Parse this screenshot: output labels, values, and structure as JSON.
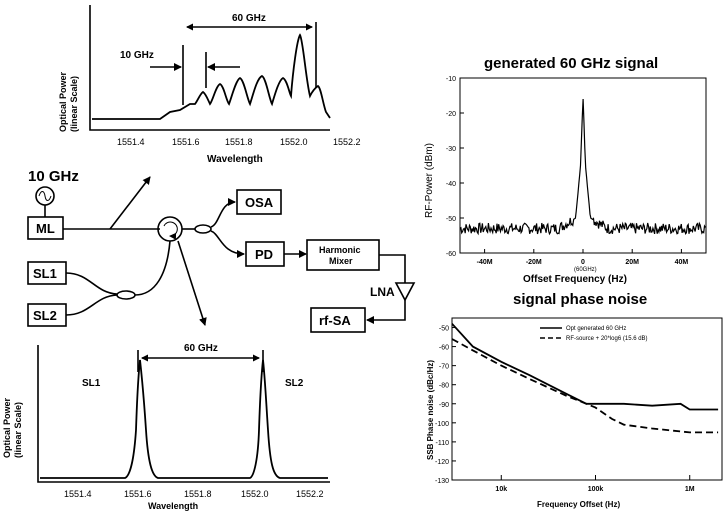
{
  "setup": {
    "source_label": "10 GHz",
    "blocks": {
      "ml": "ML",
      "sl1": "SL1",
      "sl2": "SL2",
      "osa": "OSA",
      "pd": "PD",
      "mixer_line1": "Harmonic",
      "mixer_line2": "Mixer",
      "lna": "LNA",
      "rfsa": "rf-SA"
    }
  },
  "spectra": {
    "top": {
      "ylabel_line1": "Optical Power",
      "ylabel_line2": "(linear Scale)",
      "xlabel": "Wavelength",
      "xticks": [
        "1551.4",
        "1551.6",
        "1551.8",
        "1552.0",
        "1552.2"
      ],
      "ann_spacing": "10 GHz",
      "ann_span": "60 GHz"
    },
    "bottom": {
      "ylabel_line1": "Optical Power",
      "ylabel_line2": "(linear Scale)",
      "xlabel": "Wavelength",
      "xticks": [
        "1551.4",
        "1551.6",
        "1551.8",
        "1552.0",
        "1552.2"
      ],
      "ann_span": "60 GHz",
      "peak_left": "SL1",
      "peak_right": "SL2"
    }
  },
  "chart_data": [
    {
      "type": "line",
      "title": "generated 60 GHz signal",
      "xlabel": "Offset Frequency (Hz)",
      "ylabel": "RF-Power (dBm)",
      "xticks": [
        "-40M",
        "-20M",
        "0",
        "20M",
        "40M"
      ],
      "center_label": "(60GHz)",
      "yticks": [
        "-10",
        "-20",
        "-30",
        "-40",
        "-50",
        "-60"
      ],
      "x": [
        -50,
        -10,
        -3,
        -1,
        0,
        1,
        3,
        10,
        50
      ],
      "y": [
        -53,
        -53,
        -50,
        -35,
        -15,
        -35,
        -50,
        -53,
        -53
      ],
      "xlim": [
        -50,
        50
      ],
      "ylim": [
        -60,
        -10
      ]
    },
    {
      "type": "line",
      "title": "signal phase noise",
      "xlabel": "Frequency Offset (Hz)",
      "ylabel": "SSB Phase noise (dBc/Hz)",
      "xscale": "log",
      "xticks": [
        "10k",
        "100k",
        "1M"
      ],
      "yticks": [
        "-50",
        "-60",
        "-70",
        "-80",
        "-90",
        "-100",
        "-110",
        "-120",
        "-130"
      ],
      "ylim": [
        -130,
        -45
      ],
      "legend_placement": "top-right",
      "series": [
        {
          "name": "Opt generated 60 GHz",
          "style": "solid",
          "x": [
            3000,
            5000,
            10000,
            20000,
            50000,
            80000,
            100000,
            200000,
            400000,
            800000,
            1000000,
            2000000
          ],
          "y": [
            -48,
            -60,
            -68,
            -75,
            -85,
            -90,
            -90,
            -90,
            -91,
            -90,
            -93,
            -93
          ]
        },
        {
          "name": "RF-source + 20*log6 (15.6 dB)",
          "style": "dashed",
          "x": [
            3000,
            5000,
            10000,
            20000,
            50000,
            80000,
            100000,
            150000,
            200000,
            400000,
            1000000,
            2000000
          ],
          "y": [
            -56,
            -62,
            -70,
            -77,
            -86,
            -90,
            -92,
            -98,
            -101,
            -103,
            -105,
            -105
          ]
        }
      ]
    }
  ]
}
